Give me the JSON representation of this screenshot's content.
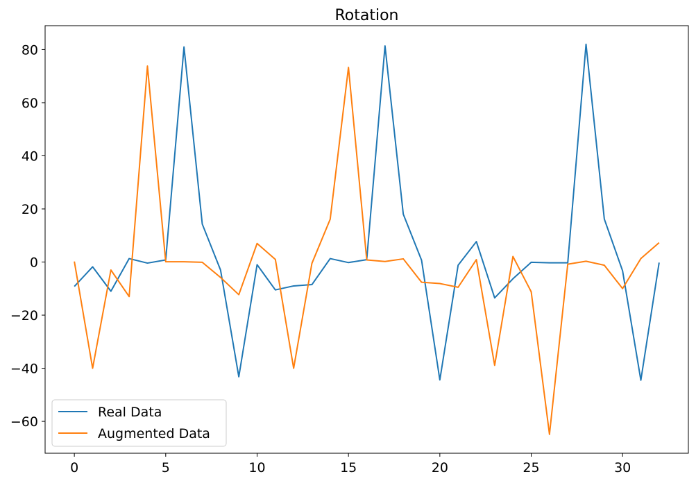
{
  "chart_data": {
    "type": "line",
    "title": "Rotation",
    "xlabel": "",
    "ylabel": "",
    "xlim": [
      -1.6,
      33.6
    ],
    "ylim": [
      -72,
      89
    ],
    "xticks": [
      0,
      5,
      10,
      15,
      20,
      25,
      30
    ],
    "yticks": [
      -60,
      -40,
      -20,
      0,
      20,
      40,
      60,
      80
    ],
    "grid": false,
    "legend_position": "lower-left",
    "x": [
      0,
      1,
      2,
      3,
      4,
      5,
      6,
      7,
      8,
      9,
      10,
      11,
      12,
      13,
      14,
      15,
      16,
      17,
      18,
      19,
      20,
      21,
      22,
      23,
      24,
      25,
      26,
      27,
      28,
      29,
      30,
      31,
      32
    ],
    "series": [
      {
        "name": "Real Data",
        "color": "#1f77b4",
        "values": [
          -9.2,
          -1.8,
          -11,
          1.3,
          -0.4,
          0.8,
          81,
          14.3,
          -3,
          -43.2,
          -1,
          -10.5,
          -9,
          -8.5,
          1.3,
          -0.2,
          0.9,
          81.4,
          18,
          0.7,
          -44.4,
          -1.2,
          7.7,
          -13.5,
          -6.3,
          -0.1,
          -0.3,
          -0.3,
          82,
          16.2,
          -3.3,
          -44.5,
          -0.2
        ]
      },
      {
        "name": "Augmented Data",
        "color": "#ff7f0e",
        "values": [
          0.2,
          -40,
          -3,
          -13,
          73.8,
          0.1,
          0.1,
          -0.1,
          -5.8,
          -12.3,
          7,
          1,
          -40,
          -0.5,
          16.1,
          73.3,
          0.8,
          0.2,
          1.2,
          -7.6,
          -8.1,
          -9.5,
          0.9,
          -38.9,
          2.1,
          -11.2,
          -64.9,
          -0.8,
          0.3,
          -1.2,
          -10,
          1.3,
          7.3
        ]
      }
    ]
  }
}
